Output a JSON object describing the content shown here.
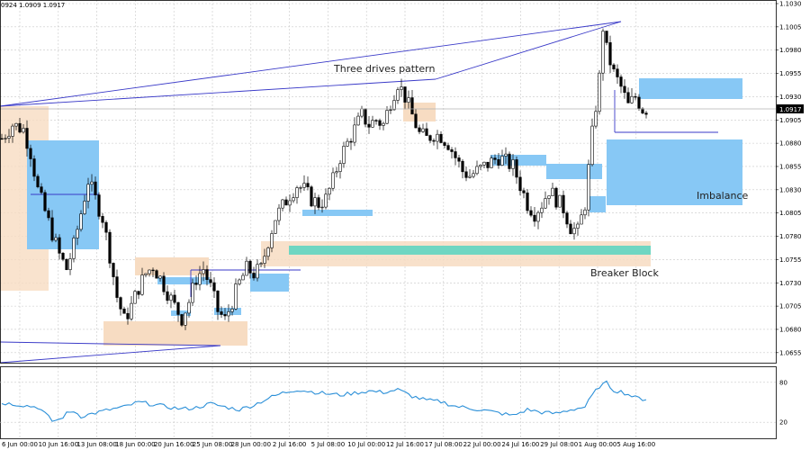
{
  "header": {
    "ohlc_text": "0924 1.0909 1.0917"
  },
  "chart_data": {
    "type": "candlestick",
    "grid": true,
    "price_axis": {
      "ylim": [
        1.065,
        1.103
      ],
      "ticks": [
        "1.1030",
        "1.1005",
        "1.0980",
        "1.0955",
        "1.0930",
        "1.0905",
        "1.0880",
        "1.0855",
        "1.0830",
        "1.0805",
        "1.0780",
        "1.0755",
        "1.0730",
        "1.0705",
        "1.0680",
        "1.0655"
      ],
      "current_price": "1.0917"
    },
    "time_axis": {
      "ticks": [
        "6 Jun 00:00",
        "10 Jun 16:00",
        "13 Jun 08:00",
        "18 Jun 00:00",
        "20 Jun 16:00",
        "25 Jun 08:00",
        "28 Jun 00:00",
        "2 Jul 16:00",
        "5 Jul 08:00",
        "10 Jul 00:00",
        "12 Jul 16:00",
        "17 Jul 08:00",
        "22 Jul 00:00",
        "24 Jul 16:00",
        "29 Jul 08:00",
        "1 Aug 00:00",
        "5 Aug 16:00"
      ]
    },
    "price_path": [
      [
        0,
        1.0885
      ],
      [
        3,
        1.09
      ],
      [
        6,
        1.0895
      ],
      [
        8,
        1.087
      ],
      [
        10,
        1.083
      ],
      [
        13,
        1.0795
      ],
      [
        16,
        1.076
      ],
      [
        18,
        1.0745
      ],
      [
        20,
        1.077
      ],
      [
        22,
        1.0805
      ],
      [
        24,
        1.084
      ],
      [
        26,
        1.082
      ],
      [
        28,
        1.08
      ],
      [
        30,
        1.076
      ],
      [
        32,
        1.0715
      ],
      [
        34,
        1.069
      ],
      [
        36,
        1.0705
      ],
      [
        38,
        1.0725
      ],
      [
        40,
        1.074
      ],
      [
        42,
        1.0748
      ],
      [
        44,
        1.0735
      ],
      [
        46,
        1.072
      ],
      [
        48,
        1.0705
      ],
      [
        50,
        1.0692
      ],
      [
        52,
        1.071
      ],
      [
        54,
        1.0735
      ],
      [
        56,
        1.0745
      ],
      [
        58,
        1.0725
      ],
      [
        60,
        1.07
      ],
      [
        62,
        1.069
      ],
      [
        64,
        1.071
      ],
      [
        66,
        1.073
      ],
      [
        68,
        1.0745
      ],
      [
        70,
        1.074
      ],
      [
        72,
        1.0745
      ],
      [
        74,
        1.0775
      ],
      [
        76,
        1.08
      ],
      [
        78,
        1.0812
      ],
      [
        80,
        1.0825
      ],
      [
        82,
        1.0835
      ],
      [
        84,
        1.083
      ],
      [
        86,
        1.082
      ],
      [
        88,
        1.0815
      ],
      [
        90,
        1.082
      ],
      [
        92,
        1.084
      ],
      [
        94,
        1.0865
      ],
      [
        96,
        1.088
      ],
      [
        98,
        1.0895
      ],
      [
        100,
        1.091
      ],
      [
        102,
        1.09
      ],
      [
        104,
        1.0905
      ],
      [
        106,
        1.09
      ],
      [
        108,
        1.0925
      ],
      [
        110,
        1.0945
      ],
      [
        112,
        1.093
      ],
      [
        114,
        1.091
      ],
      [
        116,
        1.089
      ],
      [
        118,
        1.0885
      ],
      [
        120,
        1.089
      ],
      [
        122,
        1.0888
      ],
      [
        124,
        1.088
      ],
      [
        126,
        1.0865
      ],
      [
        128,
        1.085
      ],
      [
        130,
        1.0845
      ],
      [
        132,
        1.085
      ],
      [
        134,
        1.0855
      ],
      [
        136,
        1.086
      ],
      [
        138,
        1.0865
      ],
      [
        140,
        1.086
      ],
      [
        142,
        1.0855
      ],
      [
        144,
        1.0835
      ],
      [
        146,
        1.0815
      ],
      [
        148,
        1.0805
      ],
      [
        150,
        1.0815
      ],
      [
        152,
        1.083
      ],
      [
        154,
        1.082
      ],
      [
        156,
        1.081
      ],
      [
        158,
        1.079
      ],
      [
        160,
        1.0785
      ],
      [
        162,
        1.0815
      ],
      [
        164,
        1.089
      ],
      [
        166,
        1.095
      ],
      [
        167,
        1.1005
      ],
      [
        168,
        1.098
      ],
      [
        170,
        1.0955
      ],
      [
        172,
        1.094
      ],
      [
        174,
        1.092
      ],
      [
        176,
        1.093
      ],
      [
        178,
        1.0917
      ]
    ],
    "indicator": {
      "levels": [
        80,
        20
      ],
      "path": [
        [
          0,
          49
        ],
        [
          4,
          47
        ],
        [
          8,
          44
        ],
        [
          10,
          43
        ],
        [
          12,
          33
        ],
        [
          14,
          22
        ],
        [
          16,
          24
        ],
        [
          18,
          33
        ],
        [
          20,
          37
        ],
        [
          22,
          29
        ],
        [
          26,
          34
        ],
        [
          30,
          39
        ],
        [
          34,
          43
        ],
        [
          38,
          50
        ],
        [
          42,
          47
        ],
        [
          46,
          43
        ],
        [
          50,
          40
        ],
        [
          54,
          42
        ],
        [
          58,
          48
        ],
        [
          62,
          43
        ],
        [
          66,
          39
        ],
        [
          70,
          46
        ],
        [
          74,
          56
        ],
        [
          78,
          64
        ],
        [
          82,
          69
        ],
        [
          86,
          66
        ],
        [
          90,
          63
        ],
        [
          94,
          61
        ],
        [
          98,
          64
        ],
        [
          102,
          67
        ],
        [
          106,
          65
        ],
        [
          110,
          69
        ],
        [
          114,
          59
        ],
        [
          118,
          53
        ],
        [
          122,
          51
        ],
        [
          126,
          44
        ],
        [
          130,
          41
        ],
        [
          134,
          38
        ],
        [
          138,
          34
        ],
        [
          142,
          30
        ],
        [
          146,
          39
        ],
        [
          150,
          35
        ],
        [
          154,
          33
        ],
        [
          158,
          39
        ],
        [
          162,
          43
        ],
        [
          164,
          60
        ],
        [
          166,
          74
        ],
        [
          168,
          79
        ],
        [
          170,
          68
        ],
        [
          172,
          66
        ],
        [
          174,
          62
        ],
        [
          176,
          57
        ],
        [
          178,
          55
        ]
      ]
    },
    "annotations": {
      "pattern_label": "Three drives pattern",
      "breaker_label": "Breaker Block",
      "imbalance_label": "Imbalance"
    },
    "colors": {
      "up_candle": "#ffffff",
      "down_candle": "#000000",
      "trend_line": "#3a3ac8",
      "imbalance_zone": "#87c8f5",
      "order_block_zone": "#f7dcc2",
      "breaker_block": "#6fd6c2",
      "indicator_line": "#2a8fd8",
      "grid": "#c8c8c8"
    }
  }
}
